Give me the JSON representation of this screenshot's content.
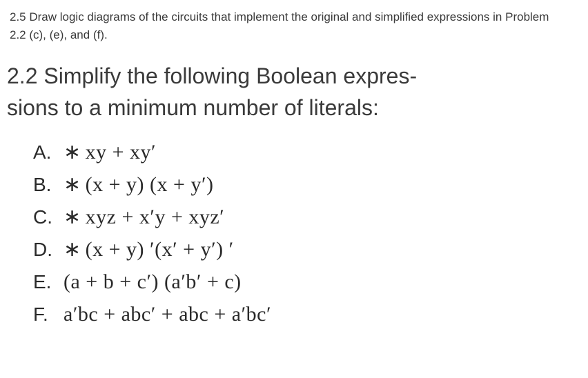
{
  "intro": {
    "line1": "2.5 Draw logic diagrams of the circuits that implement the original and simplified expressions in Problem",
    "line2": "2.2 (c), (e), and (f)."
  },
  "heading": {
    "line1": "2.2 Simplify the following Boolean expres-",
    "line2": "sions to a minimum number of literals:"
  },
  "items": [
    {
      "letter": "A.",
      "starred": true,
      "expression": "xy + xy′"
    },
    {
      "letter": "B.",
      "starred": true,
      "expression": "(x + y) (x + y′)"
    },
    {
      "letter": "C.",
      "starred": true,
      "expression": "xyz + x′y + xyz′"
    },
    {
      "letter": "D.",
      "starred": true,
      "expression": "(x + y) ′(x′ + y′) ′"
    },
    {
      "letter": "E.",
      "starred": false,
      "expression": "(a + b + c′) (a′b′ + c)"
    },
    {
      "letter": "F.",
      "starred": false,
      "expression": "a′bc + abc′ + abc + a′bc′"
    }
  ],
  "colors": {
    "text": "#3a3a3a",
    "expr_text": "#2a2a2a",
    "background": "#ffffff"
  },
  "typography": {
    "intro_fontsize": 17,
    "heading_fontsize": 32,
    "list_fontsize": 30,
    "letter_fontsize": 28
  }
}
